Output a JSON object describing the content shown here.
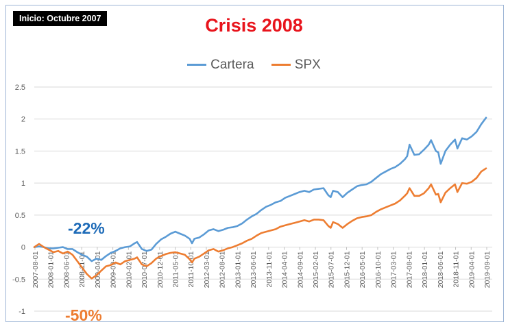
{
  "badge": "Inicio: Octubre 2007",
  "chart_data": {
    "type": "line",
    "title": "Crisis 2008",
    "xlabel": "",
    "ylabel": "",
    "ylim": [
      -1,
      2.5
    ],
    "yticks": [
      "2.5",
      "2",
      "1.5",
      "1",
      "0.5",
      "0",
      "-0.5",
      "-1"
    ],
    "grid": "horizontal",
    "legend_position": "top",
    "x_tick_labels": [
      "2007-08-01",
      "2008-01-01",
      "2008-06-01",
      "2008-11-01",
      "2009-04-01",
      "2009-09-01",
      "2010-02-01",
      "2010-07-01",
      "2010-12-01",
      "2011-05-01",
      "2011-10-01",
      "2012-03-01",
      "2012-08-01",
      "2013-01-01",
      "2013-06-01",
      "2013-11-01",
      "2014-04-01",
      "2014-09-01",
      "2015-02-01",
      "2015-07-01",
      "2015-12-01",
      "2016-05-01",
      "2016-10-01",
      "2017-03-01",
      "2017-08-01",
      "2018-01-01",
      "2018-06-01",
      "2018-11-01",
      "2019-04-01",
      "2019-09-01"
    ],
    "series": [
      {
        "name": "Cartera",
        "color": "#5b9bd5",
        "points": [
          [
            0,
            0
          ],
          [
            2,
            0.01
          ],
          [
            4,
            0.0
          ],
          [
            6,
            -0.02
          ],
          [
            8,
            -0.02
          ],
          [
            10,
            -0.01
          ],
          [
            12,
            0.0
          ],
          [
            14,
            -0.03
          ],
          [
            16,
            -0.03
          ],
          [
            18,
            -0.08
          ],
          [
            20,
            -0.12
          ],
          [
            22,
            -0.15
          ],
          [
            24,
            -0.22
          ],
          [
            26,
            -0.18
          ],
          [
            28,
            -0.2
          ],
          [
            30,
            -0.14
          ],
          [
            32,
            -0.09
          ],
          [
            34,
            -0.06
          ],
          [
            36,
            -0.02
          ],
          [
            38,
            0.0
          ],
          [
            40,
            0.01
          ],
          [
            42,
            0.06
          ],
          [
            43,
            0.08
          ],
          [
            45,
            -0.03
          ],
          [
            47,
            -0.06
          ],
          [
            49,
            -0.04
          ],
          [
            51,
            0.05
          ],
          [
            53,
            0.12
          ],
          [
            55,
            0.16
          ],
          [
            57,
            0.21
          ],
          [
            59,
            0.24
          ],
          [
            61,
            0.21
          ],
          [
            63,
            0.18
          ],
          [
            65,
            0.13
          ],
          [
            66,
            0.06
          ],
          [
            67,
            0.13
          ],
          [
            69,
            0.15
          ],
          [
            71,
            0.2
          ],
          [
            73,
            0.26
          ],
          [
            75,
            0.28
          ],
          [
            77,
            0.25
          ],
          [
            79,
            0.27
          ],
          [
            81,
            0.3
          ],
          [
            83,
            0.31
          ],
          [
            85,
            0.33
          ],
          [
            87,
            0.37
          ],
          [
            89,
            0.43
          ],
          [
            91,
            0.48
          ],
          [
            93,
            0.52
          ],
          [
            95,
            0.58
          ],
          [
            97,
            0.63
          ],
          [
            99,
            0.66
          ],
          [
            101,
            0.7
          ],
          [
            103,
            0.72
          ],
          [
            105,
            0.77
          ],
          [
            107,
            0.8
          ],
          [
            109,
            0.83
          ],
          [
            111,
            0.86
          ],
          [
            113,
            0.88
          ],
          [
            115,
            0.86
          ],
          [
            117,
            0.9
          ],
          [
            119,
            0.91
          ],
          [
            121,
            0.92
          ],
          [
            123,
            0.81
          ],
          [
            124,
            0.78
          ],
          [
            125,
            0.88
          ],
          [
            127,
            0.86
          ],
          [
            129,
            0.78
          ],
          [
            131,
            0.85
          ],
          [
            133,
            0.9
          ],
          [
            135,
            0.95
          ],
          [
            137,
            0.97
          ],
          [
            139,
            0.98
          ],
          [
            141,
            1.02
          ],
          [
            143,
            1.08
          ],
          [
            145,
            1.14
          ],
          [
            147,
            1.18
          ],
          [
            149,
            1.22
          ],
          [
            151,
            1.25
          ],
          [
            153,
            1.3
          ],
          [
            155,
            1.37
          ],
          [
            156,
            1.42
          ],
          [
            157,
            1.6
          ],
          [
            159,
            1.44
          ],
          [
            161,
            1.45
          ],
          [
            163,
            1.52
          ],
          [
            165,
            1.6
          ],
          [
            166,
            1.67
          ],
          [
            168,
            1.5
          ],
          [
            169,
            1.48
          ],
          [
            170,
            1.3
          ],
          [
            172,
            1.5
          ],
          [
            174,
            1.6
          ],
          [
            176,
            1.68
          ],
          [
            177,
            1.54
          ],
          [
            179,
            1.7
          ],
          [
            181,
            1.68
          ],
          [
            183,
            1.73
          ],
          [
            185,
            1.8
          ],
          [
            187,
            1.92
          ],
          [
            189,
            2.02
          ]
        ]
      },
      {
        "name": "SPX",
        "color": "#ed7d31",
        "points": [
          [
            0,
            0
          ],
          [
            2,
            0.05
          ],
          [
            4,
            0.0
          ],
          [
            6,
            -0.04
          ],
          [
            8,
            -0.08
          ],
          [
            10,
            -0.06
          ],
          [
            12,
            -0.1
          ],
          [
            14,
            -0.07
          ],
          [
            16,
            -0.12
          ],
          [
            18,
            -0.22
          ],
          [
            20,
            -0.32
          ],
          [
            22,
            -0.42
          ],
          [
            24,
            -0.49
          ],
          [
            26,
            -0.44
          ],
          [
            28,
            -0.37
          ],
          [
            30,
            -0.3
          ],
          [
            32,
            -0.28
          ],
          [
            34,
            -0.24
          ],
          [
            36,
            -0.27
          ],
          [
            38,
            -0.22
          ],
          [
            40,
            -0.2
          ],
          [
            42,
            -0.18
          ],
          [
            43,
            -0.16
          ],
          [
            45,
            -0.27
          ],
          [
            47,
            -0.3
          ],
          [
            49,
            -0.25
          ],
          [
            51,
            -0.18
          ],
          [
            53,
            -0.14
          ],
          [
            55,
            -0.11
          ],
          [
            57,
            -0.09
          ],
          [
            59,
            -0.08
          ],
          [
            61,
            -0.1
          ],
          [
            63,
            -0.12
          ],
          [
            65,
            -0.19
          ],
          [
            66,
            -0.24
          ],
          [
            67,
            -0.18
          ],
          [
            69,
            -0.15
          ],
          [
            71,
            -0.1
          ],
          [
            73,
            -0.05
          ],
          [
            75,
            -0.03
          ],
          [
            77,
            -0.07
          ],
          [
            79,
            -0.05
          ],
          [
            81,
            -0.02
          ],
          [
            83,
            0.0
          ],
          [
            85,
            0.03
          ],
          [
            87,
            0.06
          ],
          [
            89,
            0.1
          ],
          [
            91,
            0.13
          ],
          [
            93,
            0.18
          ],
          [
            95,
            0.22
          ],
          [
            97,
            0.24
          ],
          [
            99,
            0.26
          ],
          [
            101,
            0.28
          ],
          [
            103,
            0.32
          ],
          [
            105,
            0.34
          ],
          [
            107,
            0.36
          ],
          [
            109,
            0.38
          ],
          [
            111,
            0.4
          ],
          [
            113,
            0.42
          ],
          [
            115,
            0.4
          ],
          [
            117,
            0.43
          ],
          [
            119,
            0.43
          ],
          [
            121,
            0.42
          ],
          [
            123,
            0.33
          ],
          [
            124,
            0.3
          ],
          [
            125,
            0.39
          ],
          [
            127,
            0.36
          ],
          [
            129,
            0.3
          ],
          [
            131,
            0.36
          ],
          [
            133,
            0.41
          ],
          [
            135,
            0.45
          ],
          [
            137,
            0.47
          ],
          [
            139,
            0.48
          ],
          [
            141,
            0.5
          ],
          [
            143,
            0.55
          ],
          [
            145,
            0.59
          ],
          [
            147,
            0.62
          ],
          [
            149,
            0.65
          ],
          [
            151,
            0.68
          ],
          [
            153,
            0.73
          ],
          [
            155,
            0.8
          ],
          [
            156,
            0.84
          ],
          [
            157,
            0.92
          ],
          [
            159,
            0.8
          ],
          [
            161,
            0.8
          ],
          [
            163,
            0.84
          ],
          [
            165,
            0.92
          ],
          [
            166,
            0.98
          ],
          [
            168,
            0.82
          ],
          [
            169,
            0.83
          ],
          [
            170,
            0.7
          ],
          [
            172,
            0.85
          ],
          [
            174,
            0.92
          ],
          [
            176,
            0.98
          ],
          [
            177,
            0.86
          ],
          [
            179,
            1.0
          ],
          [
            181,
            0.99
          ],
          [
            183,
            1.02
          ],
          [
            185,
            1.08
          ],
          [
            187,
            1.18
          ],
          [
            189,
            1.23
          ]
        ]
      }
    ],
    "annotations": [
      {
        "text": "-22%",
        "color": "#1e6bb8"
      },
      {
        "text": "-50%",
        "color": "#ed7d31"
      }
    ]
  }
}
